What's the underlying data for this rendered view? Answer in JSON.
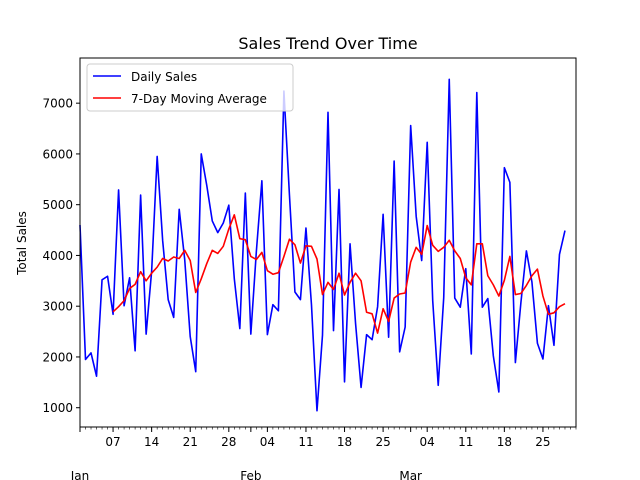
{
  "chart_data": {
    "type": "line",
    "title": "Sales Trend Over Time",
    "xlabel": "",
    "ylabel": "Total Sales",
    "x_start": "2024-01-01",
    "xlim": [
      "2024-01-01",
      "2024-03-31"
    ],
    "ylim": [
      620,
      7890
    ],
    "y_ticks": [
      1000,
      2000,
      3000,
      4000,
      5000,
      6000,
      7000
    ],
    "x_ticks": [
      {
        "date": "2024-01-07",
        "label": "07"
      },
      {
        "date": "2024-01-14",
        "label": "14"
      },
      {
        "date": "2024-01-21",
        "label": "21"
      },
      {
        "date": "2024-01-28",
        "label": "28"
      },
      {
        "date": "2024-02-04",
        "label": "04"
      },
      {
        "date": "2024-02-11",
        "label": "11"
      },
      {
        "date": "2024-02-18",
        "label": "18"
      },
      {
        "date": "2024-02-25",
        "label": "25"
      },
      {
        "date": "2024-03-04",
        "label": "04"
      },
      {
        "date": "2024-03-11",
        "label": "11"
      },
      {
        "date": "2024-03-18",
        "label": "18"
      },
      {
        "date": "2024-03-25",
        "label": "25"
      }
    ],
    "month_labels": [
      {
        "date": "2024-01-01",
        "label": "Jan"
      },
      {
        "date": "2024-02-01",
        "label": "Feb"
      },
      {
        "date": "2024-03-01",
        "label": "Mar"
      }
    ],
    "legend_position": "upper-left",
    "grid": false,
    "series": [
      {
        "name": "Daily Sales",
        "color": "#0000ff",
        "values": [
          4600,
          1950,
          2080,
          1620,
          3520,
          3590,
          2840,
          5290,
          3010,
          3560,
          2120,
          5190,
          2450,
          3690,
          5950,
          4290,
          3130,
          2780,
          4910,
          3920,
          2400,
          1710,
          6000,
          5380,
          4680,
          4450,
          4640,
          4990,
          3540,
          2560,
          5230,
          2450,
          4080,
          5470,
          2440,
          3030,
          2910,
          7240,
          5200,
          3280,
          3130,
          4540,
          3030,
          940,
          2430,
          6820,
          2520,
          5300,
          1510,
          4230,
          2660,
          1400,
          2440,
          2340,
          2990,
          4810,
          2390,
          5860,
          2100,
          2590,
          6560,
          4770,
          3900,
          6230,
          3110,
          1440,
          3170,
          7470,
          3160,
          2980,
          3740,
          2060,
          7210,
          2980,
          3150,
          2020,
          1310,
          5730,
          5440,
          1890,
          3070,
          4090,
          3480,
          2270,
          1960,
          3010,
          2230,
          4020,
          4490
        ]
      },
      {
        "name": "7-Day Moving Average",
        "color": "#ff0000",
        "start_index": 6,
        "values": [
          2890,
          2990,
          3110,
          3350,
          3430,
          3680,
          3500,
          3650,
          3770,
          3940,
          3890,
          3970,
          3940,
          4100,
          3900,
          3270,
          3540,
          3840,
          4100,
          4040,
          4180,
          4520,
          4800,
          4330,
          4310,
          3980,
          3920,
          4060,
          3700,
          3630,
          3660,
          3980,
          4320,
          4210,
          3850,
          4190,
          4180,
          3930,
          3230,
          3470,
          3330,
          3650,
          3220,
          3470,
          3650,
          3500,
          2880,
          2850,
          2470,
          2950,
          2700,
          3160,
          3240,
          3260,
          3870,
          4160,
          4020,
          4590,
          4200,
          4080,
          4160,
          4300,
          4090,
          3940,
          3560,
          3420,
          4230,
          4230,
          3600,
          3420,
          3200,
          3510,
          3980,
          3230,
          3250,
          3410,
          3600,
          3730,
          3200,
          2840,
          2870,
          2990,
          3050
        ]
      }
    ]
  }
}
